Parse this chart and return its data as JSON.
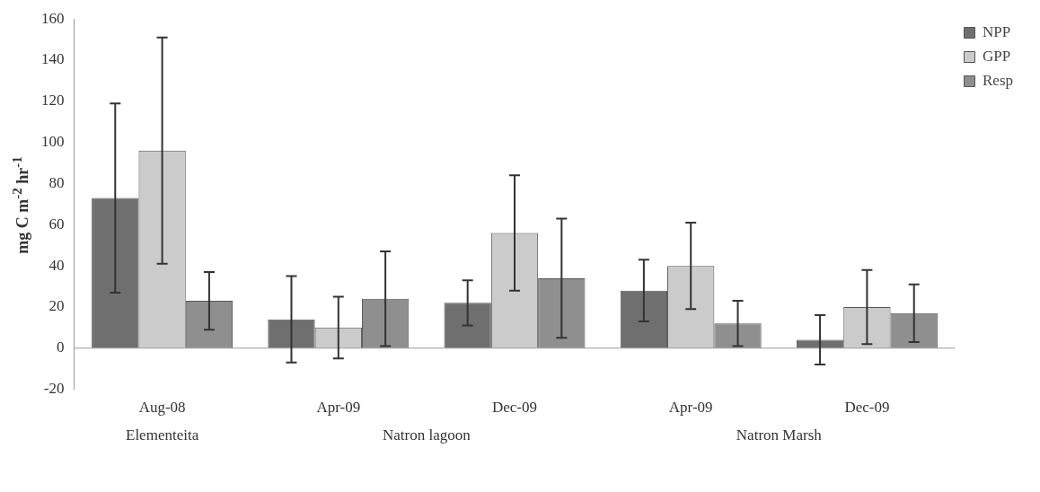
{
  "chart_data": {
    "type": "bar",
    "ylabel": "mg C m$^{-2}$ hr$^{-1}$",
    "categories": [
      "Aug-08",
      "Apr-09",
      "Dec-09",
      "Apr-09",
      "Dec-09"
    ],
    "series": [
      {
        "name": "NPP",
        "color": "#6f6f6f",
        "values": [
          73,
          14,
          22,
          28,
          4
        ],
        "errors": [
          46,
          21,
          11,
          15,
          12
        ]
      },
      {
        "name": "GPP",
        "color": "#cbcbcb",
        "values": [
          96,
          10,
          56,
          40,
          20
        ],
        "errors": [
          55,
          15,
          28,
          21,
          18
        ]
      },
      {
        "name": "Resp",
        "color": "#8f8f8f",
        "values": [
          23,
          24,
          34,
          12,
          17
        ],
        "errors": [
          14,
          23,
          29,
          11,
          14
        ]
      }
    ],
    "ylim": [
      -20,
      160
    ],
    "yticks": [
      -20,
      0,
      20,
      40,
      60,
      80,
      100,
      120,
      140,
      160
    ],
    "annotations": [
      "Elementeita",
      "Natron lagoon",
      "Natron Marsh"
    ],
    "ref_lines": [
      {
        "axis": "y",
        "value": 0,
        "color": "#999999"
      }
    ],
    "legend": "top right",
    "grid": false
  }
}
